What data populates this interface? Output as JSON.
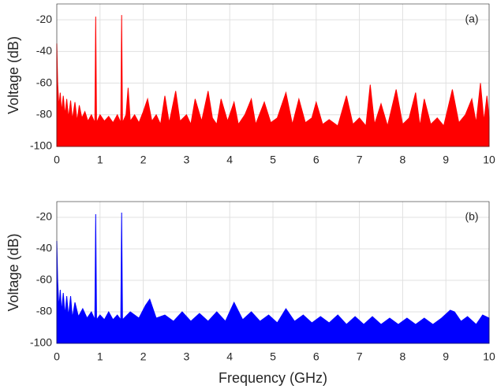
{
  "chart_data": [
    {
      "type": "area",
      "annotation": "(a)",
      "ylabel": "Voltage (dB)",
      "color": "#ff0000",
      "x": [
        0,
        0.02,
        0.05,
        0.08,
        0.11,
        0.15,
        0.19,
        0.23,
        0.27,
        0.32,
        0.36,
        0.42,
        0.47,
        0.52,
        0.58,
        0.65,
        0.72,
        0.8,
        0.88,
        0.9,
        0.92,
        1.0,
        1.1,
        1.2,
        1.3,
        1.4,
        1.48,
        1.5,
        1.52,
        1.6,
        1.65,
        1.7,
        1.8,
        1.9,
        2.0,
        2.1,
        2.2,
        2.3,
        2.4,
        2.5,
        2.6,
        2.75,
        2.85,
        3.0,
        3.1,
        3.2,
        3.35,
        3.5,
        3.6,
        3.7,
        3.8,
        3.95,
        4.1,
        4.2,
        4.35,
        4.5,
        4.6,
        4.8,
        4.95,
        5.1,
        5.3,
        5.45,
        5.6,
        5.75,
        5.9,
        6.0,
        6.15,
        6.3,
        6.5,
        6.7,
        6.85,
        7.0,
        7.15,
        7.25,
        7.35,
        7.5,
        7.65,
        7.85,
        8.0,
        8.15,
        8.3,
        8.4,
        8.5,
        8.65,
        8.8,
        8.95,
        9.15,
        9.3,
        9.45,
        9.6,
        9.7,
        9.8,
        9.88,
        9.95,
        10
      ],
      "values": [
        -35,
        -60,
        -75,
        -66,
        -78,
        -68,
        -80,
        -70,
        -82,
        -71,
        -83,
        -72,
        -84,
        -74,
        -82,
        -78,
        -84,
        -80,
        -85,
        -18,
        -85,
        -80,
        -84,
        -81,
        -85,
        -80,
        -85,
        -17,
        -85,
        -80,
        -63,
        -84,
        -80,
        -85,
        -78,
        -70,
        -84,
        -80,
        -86,
        -68,
        -85,
        -65,
        -84,
        -80,
        -86,
        -70,
        -84,
        -65,
        -82,
        -86,
        -70,
        -84,
        -72,
        -86,
        -80,
        -70,
        -86,
        -72,
        -85,
        -82,
        -66,
        -86,
        -70,
        -85,
        -82,
        -72,
        -86,
        -83,
        -87,
        -68,
        -86,
        -82,
        -87,
        -61,
        -86,
        -73,
        -87,
        -64,
        -86,
        -82,
        -66,
        -87,
        -70,
        -86,
        -82,
        -87,
        -64,
        -85,
        -80,
        -70,
        -85,
        -60,
        -84,
        -68,
        -82
      ],
      "xlim": [
        0,
        10
      ],
      "xticks": [
        0,
        1,
        2,
        3,
        4,
        5,
        6,
        7,
        8,
        9,
        10
      ],
      "ylim": [
        -100,
        -10
      ],
      "yticks": [
        -20,
        -40,
        -60,
        -80,
        -100
      ],
      "grid": true
    },
    {
      "type": "area",
      "annotation": "(b)",
      "ylabel": "Voltage (dB)",
      "xlabel": "Frequency (GHz)",
      "color": "#0000ff",
      "x": [
        0,
        0.02,
        0.05,
        0.08,
        0.11,
        0.15,
        0.19,
        0.23,
        0.27,
        0.32,
        0.36,
        0.42,
        0.5,
        0.6,
        0.7,
        0.8,
        0.88,
        0.9,
        0.92,
        1.0,
        1.1,
        1.2,
        1.3,
        1.4,
        1.48,
        1.5,
        1.52,
        1.7,
        1.9,
        2.05,
        2.15,
        2.3,
        2.5,
        2.7,
        2.9,
        3.1,
        3.3,
        3.5,
        3.7,
        3.9,
        4.1,
        4.3,
        4.5,
        4.7,
        4.9,
        5.1,
        5.3,
        5.5,
        5.7,
        5.9,
        6.1,
        6.3,
        6.5,
        6.7,
        6.9,
        7.1,
        7.3,
        7.5,
        7.7,
        7.9,
        8.1,
        8.3,
        8.5,
        8.7,
        8.9,
        9.1,
        9.2,
        9.35,
        9.5,
        9.7,
        9.85,
        10
      ],
      "values": [
        -35,
        -60,
        -78,
        -66,
        -80,
        -68,
        -82,
        -70,
        -83,
        -70,
        -84,
        -74,
        -83,
        -78,
        -84,
        -80,
        -85,
        -18,
        -85,
        -82,
        -85,
        -80,
        -85,
        -82,
        -85,
        -17,
        -85,
        -80,
        -84,
        -76,
        -72,
        -84,
        -82,
        -86,
        -80,
        -86,
        -81,
        -86,
        -80,
        -86,
        -74,
        -85,
        -80,
        -86,
        -82,
        -87,
        -78,
        -86,
        -82,
        -87,
        -83,
        -87,
        -82,
        -88,
        -83,
        -88,
        -83,
        -88,
        -84,
        -88,
        -84,
        -88,
        -84,
        -88,
        -84,
        -79,
        -80,
        -86,
        -83,
        -88,
        -82,
        -84
      ],
      "xlim": [
        0,
        10
      ],
      "xticks": [
        0,
        1,
        2,
        3,
        4,
        5,
        6,
        7,
        8,
        9,
        10
      ],
      "ylim": [
        -100,
        -10
      ],
      "yticks": [
        -20,
        -40,
        -60,
        -80,
        -100
      ],
      "grid": true
    }
  ]
}
